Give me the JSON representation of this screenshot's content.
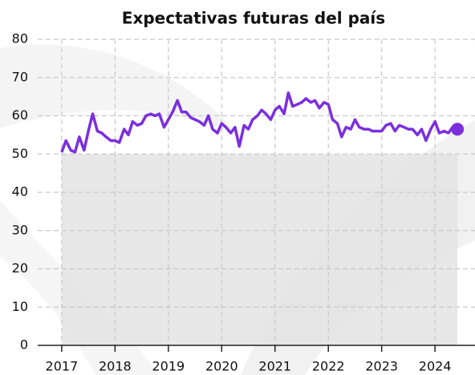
{
  "chart_data": {
    "type": "line",
    "title": "Expectativas futuras del país",
    "x": [
      2017.0,
      2017.08,
      2017.17,
      2017.25,
      2017.33,
      2017.42,
      2017.5,
      2017.58,
      2017.67,
      2017.75,
      2017.83,
      2017.92,
      2018.0,
      2018.08,
      2018.17,
      2018.25,
      2018.33,
      2018.42,
      2018.5,
      2018.58,
      2018.67,
      2018.75,
      2018.83,
      2018.92,
      2019.0,
      2019.08,
      2019.17,
      2019.25,
      2019.33,
      2019.42,
      2019.5,
      2019.58,
      2019.67,
      2019.75,
      2019.83,
      2019.92,
      2020.0,
      2020.08,
      2020.17,
      2020.25,
      2020.33,
      2020.42,
      2020.5,
      2020.58,
      2020.67,
      2020.75,
      2020.83,
      2020.92,
      2021.0,
      2021.08,
      2021.17,
      2021.25,
      2021.33,
      2021.42,
      2021.5,
      2021.58,
      2021.67,
      2021.75,
      2021.83,
      2021.92,
      2022.0,
      2022.08,
      2022.17,
      2022.25,
      2022.33,
      2022.42,
      2022.5,
      2022.58,
      2022.67,
      2022.75,
      2022.83,
      2022.92,
      2023.0,
      2023.08,
      2023.17,
      2023.25,
      2023.33,
      2023.42,
      2023.5,
      2023.58,
      2023.67,
      2023.75,
      2023.83,
      2023.92,
      2024.0,
      2024.08,
      2024.17,
      2024.25,
      2024.33,
      2024.42
    ],
    "values": [
      50.5,
      53.5,
      51,
      50.5,
      54.5,
      51,
      56,
      60.5,
      56,
      55.5,
      54.5,
      53.5,
      53.5,
      53,
      56.5,
      55,
      58.5,
      57.5,
      58,
      60,
      60.5,
      60,
      60.5,
      57,
      59,
      61,
      64,
      61,
      61,
      59.5,
      59,
      58.5,
      57.5,
      60,
      56.5,
      55.5,
      58,
      57,
      55.5,
      57,
      52,
      57.5,
      56.5,
      59,
      60,
      61.5,
      60.5,
      59,
      61.5,
      62.5,
      60.5,
      66,
      62.5,
      63,
      63.5,
      64.5,
      63.5,
      64,
      62,
      63.5,
      63,
      59,
      58,
      54.5,
      57,
      56.5,
      59,
      57,
      56.5,
      56.5,
      56,
      56,
      56,
      57.5,
      58,
      56,
      57.5,
      57,
      56.5,
      56.5,
      55,
      56.5,
      53.5,
      56.5,
      58.5,
      55.5,
      56,
      55.5,
      57,
      56.5
    ],
    "color": "#7b2fdc",
    "threshold": 50,
    "shade_color": "#e3e3e3",
    "xlim": [
      2016.55,
      2024.75
    ],
    "xticks": [
      2017,
      2018,
      2019,
      2020,
      2021,
      2022,
      2023,
      2024
    ],
    "ylim": [
      0,
      80
    ],
    "yticks": [
      0,
      10,
      20,
      30,
      40,
      50,
      60,
      70,
      80
    ],
    "grid": true
  }
}
